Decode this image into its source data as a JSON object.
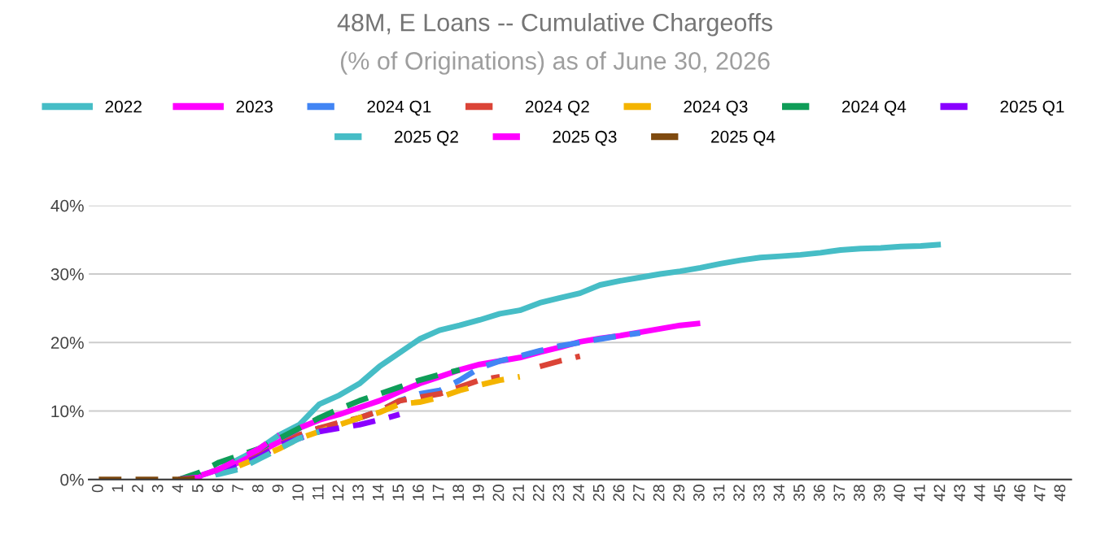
{
  "chart_data": {
    "type": "line",
    "title": "48M, E Loans -- Cumulative Chargeoffs",
    "subtitle": "(% of Originations) as of June 30, 2026",
    "categories": [
      "0",
      "1",
      "2",
      "3",
      "4",
      "5",
      "6",
      "7",
      "8",
      "9",
      "10",
      "11",
      "12",
      "13",
      "14",
      "15",
      "16",
      "17",
      "18",
      "19",
      "20",
      "21",
      "22",
      "23",
      "24",
      "25",
      "26",
      "27",
      "28",
      "29",
      "30",
      "31",
      "32",
      "33",
      "34",
      "35",
      "36",
      "37",
      "38",
      "39",
      "40",
      "41",
      "42",
      "43",
      "44",
      "45",
      "46",
      "47",
      "48"
    ],
    "ylim": [
      0,
      40
    ],
    "yticks": [
      {
        "value": 0,
        "label": "0%"
      },
      {
        "value": 10,
        "label": "10%"
      },
      {
        "value": 20,
        "label": "20%"
      },
      {
        "value": 30,
        "label": "30%"
      },
      {
        "value": 40,
        "label": "40%"
      }
    ],
    "grid": "y",
    "legend": "top",
    "marker": "none",
    "series": [
      {
        "name": "2022",
        "color": "#46bdc6",
        "line_style": "solid",
        "values": [
          null,
          null,
          null,
          null,
          0,
          0.5,
          1.5,
          3,
          4.5,
          6.5,
          8,
          11,
          12.3,
          14,
          16.5,
          18.5,
          20.5,
          21.8,
          22.5,
          23.3,
          24.2,
          24.7,
          25.8,
          26.5,
          27.2,
          28.4,
          29,
          29.5,
          30,
          30.4,
          30.9,
          31.5,
          32,
          32.4,
          32.6,
          32.8,
          33.1,
          33.5,
          33.7,
          33.8,
          34,
          34.1,
          34.3,
          null,
          null,
          null,
          null,
          null,
          null
        ]
      },
      {
        "name": "2023",
        "color": "#ff00ff",
        "line_style": "solid",
        "values": [
          null,
          null,
          null,
          null,
          0,
          0.5,
          1.5,
          2.5,
          4,
          5.5,
          7.5,
          8.7,
          9.5,
          10.5,
          11.5,
          12.8,
          14,
          15,
          16,
          16.8,
          17.3,
          17.8,
          18.6,
          19.3,
          20.1,
          20.6,
          21,
          21.5,
          22,
          22.5,
          22.8,
          null,
          null,
          null,
          null,
          null,
          null,
          null,
          null,
          null,
          null,
          null,
          null,
          null,
          null,
          null,
          null,
          null,
          null
        ]
      },
      {
        "name": "2024 Q1",
        "color": "#4285f4",
        "line_style": "dashed",
        "values": [
          null,
          null,
          null,
          null,
          0,
          0.3,
          1,
          2,
          3.5,
          5,
          6.5,
          7.5,
          8,
          9,
          10,
          11.5,
          12.5,
          13,
          14.5,
          16.3,
          17.3,
          18,
          18.8,
          19.5,
          20,
          20.5,
          21,
          21.4,
          null,
          null,
          null,
          null,
          null,
          null,
          null,
          null,
          null,
          null,
          null,
          null,
          null,
          null,
          null,
          null,
          null,
          null,
          null,
          null,
          null
        ]
      },
      {
        "name": "2024 Q2",
        "color": "#db4437",
        "line_style": "dashed",
        "values": [
          null,
          null,
          null,
          null,
          0,
          0.3,
          1,
          2,
          3.5,
          5,
          6.5,
          7.5,
          8.3,
          9,
          10,
          11.5,
          12,
          12.5,
          13.5,
          14.5,
          15,
          null,
          16.5,
          17.3,
          18,
          null,
          null,
          null,
          null,
          null,
          null,
          null,
          null,
          null,
          null,
          null,
          null,
          null,
          null,
          null,
          null,
          null,
          null,
          null,
          null,
          null,
          null,
          null,
          null
        ]
      },
      {
        "name": "2024 Q3",
        "color": "#f4b400",
        "line_style": "dashed",
        "values": [
          null,
          null,
          null,
          null,
          null,
          null,
          null,
          2,
          3.2,
          4.5,
          6,
          7,
          8,
          9,
          9.8,
          11,
          11.3,
          12,
          13,
          13.8,
          14.5,
          15,
          null,
          null,
          null,
          null,
          null,
          null,
          null,
          null,
          null,
          null,
          null,
          null,
          null,
          null,
          null,
          null,
          null,
          null,
          null,
          null,
          null,
          null,
          null,
          null,
          null,
          null,
          null
        ]
      },
      {
        "name": "2024 Q4",
        "color": "#0f9d58",
        "line_style": "dashed",
        "values": [
          null,
          null,
          null,
          null,
          0,
          1,
          2.5,
          3.5,
          4.5,
          6,
          7.5,
          9,
          10.3,
          11.5,
          12.5,
          13.5,
          14.5,
          15.3,
          16,
          null,
          null,
          null,
          null,
          null,
          null,
          null,
          null,
          null,
          null,
          null,
          null,
          null,
          null,
          null,
          null,
          null,
          null,
          null,
          null,
          null,
          null,
          null,
          null,
          null,
          null,
          null,
          null,
          null,
          null
        ]
      },
      {
        "name": "2025 Q1",
        "color": "#8a00ff",
        "line_style": "dashed",
        "values": [
          null,
          null,
          null,
          null,
          0,
          0.3,
          1,
          2,
          3.3,
          5,
          6,
          7,
          7.5,
          8,
          8.7,
          9.5,
          null,
          null,
          null,
          null,
          null,
          null,
          null,
          null,
          null,
          null,
          null,
          null,
          null,
          null,
          null,
          null,
          null,
          null,
          null,
          null,
          null,
          null,
          null,
          null,
          null,
          null,
          null,
          null,
          null,
          null,
          null,
          null,
          null
        ]
      },
      {
        "name": "2025 Q2",
        "color": "#46bdc6",
        "line_style": "dashed",
        "values": [
          null,
          null,
          null,
          null,
          0,
          0.2,
          0.8,
          1.5,
          3,
          4.5,
          6,
          7,
          null,
          null,
          null,
          null,
          null,
          null,
          null,
          null,
          null,
          null,
          null,
          null,
          null,
          null,
          null,
          null,
          null,
          null,
          null,
          null,
          null,
          null,
          null,
          null,
          null,
          null,
          null,
          null,
          null,
          null,
          null,
          null,
          null,
          null,
          null,
          null,
          null
        ]
      },
      {
        "name": "2025 Q3",
        "color": "#ff00ff",
        "line_style": "dashed",
        "values": [
          null,
          null,
          null,
          null,
          0,
          0.3,
          1.5,
          3,
          4.5,
          6.5,
          null,
          null,
          null,
          null,
          null,
          null,
          null,
          null,
          null,
          null,
          null,
          null,
          null,
          null,
          null,
          null,
          null,
          null,
          null,
          null,
          null,
          null,
          null,
          null,
          null,
          null,
          null,
          null,
          null,
          null,
          null,
          null,
          null,
          null,
          null,
          null,
          null,
          null,
          null
        ]
      },
      {
        "name": "2025 Q4",
        "color": "#7f4a0f",
        "line_style": "dashed",
        "values": [
          0,
          0,
          0,
          0,
          0,
          0.2,
          null,
          null,
          null,
          null,
          null,
          null,
          null,
          null,
          null,
          null,
          null,
          null,
          null,
          null,
          null,
          null,
          null,
          null,
          null,
          null,
          null,
          null,
          null,
          null,
          null,
          null,
          null,
          null,
          null,
          null,
          null,
          null,
          null,
          null,
          null,
          null,
          null,
          null,
          null,
          null,
          null,
          null,
          null
        ]
      }
    ]
  }
}
